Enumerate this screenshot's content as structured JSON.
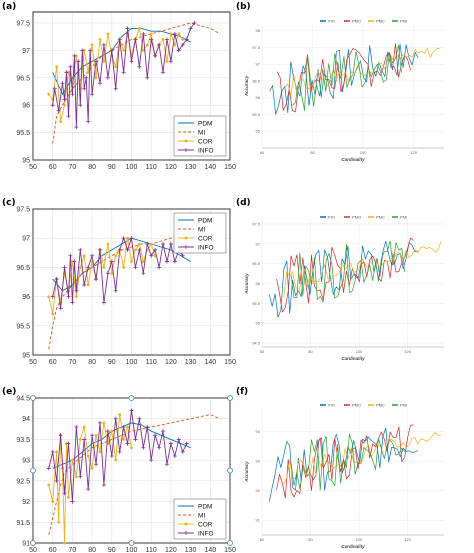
{
  "panel_labels": [
    "(a)",
    "(b)",
    "(c)",
    "(d)",
    "(e)",
    "(f)"
  ],
  "colors": {
    "PDM": "#0072BD",
    "MI": "#D95319",
    "COR": "#EDB120",
    "INFO": "#7E2F8E",
    "RED": "#d62728",
    "GRN": "#2ca02c"
  },
  "chart_data": [
    {
      "type": "line",
      "panel": "(a)",
      "side": "left",
      "xlim": [
        50,
        150
      ],
      "ylim": [
        95,
        97.7
      ],
      "xticks": [
        50,
        60,
        70,
        80,
        90,
        100,
        110,
        120,
        130,
        140,
        150
      ],
      "yticks": [
        95,
        95.5,
        96,
        96.5,
        97,
        97.5
      ],
      "legend_position": "bottom-right",
      "grid": true,
      "series": [
        {
          "name": "PDM",
          "style": "solid",
          "x": [
            60,
            65,
            70,
            75,
            80,
            85,
            90,
            95,
            100,
            105,
            110,
            115,
            120,
            125,
            130
          ],
          "y": [
            96.6,
            96.2,
            96.5,
            96.7,
            96.8,
            96.9,
            97.0,
            97.25,
            97.4,
            97.4,
            97.35,
            97.35,
            97.3,
            97.25,
            97.15
          ]
        },
        {
          "name": "MI",
          "style": "dashed",
          "x": [
            60,
            62,
            65,
            70,
            75,
            80,
            85,
            90,
            95,
            100,
            105,
            110,
            115,
            120,
            125,
            130,
            135,
            140,
            145
          ],
          "y": [
            95.3,
            95.8,
            96.0,
            96.3,
            96.5,
            96.7,
            96.9,
            97.0,
            97.1,
            97.2,
            97.25,
            97.3,
            97.35,
            97.4,
            97.45,
            97.5,
            97.45,
            97.4,
            97.3
          ]
        },
        {
          "name": "COR",
          "style": "marker",
          "x": [
            58,
            60,
            62,
            64,
            66,
            68,
            70,
            72,
            74,
            76,
            78,
            80,
            82,
            84,
            86,
            88,
            90,
            92,
            94,
            96,
            98,
            100,
            102,
            104,
            106,
            108,
            110,
            112,
            114,
            116,
            118,
            120,
            122,
            124,
            126
          ],
          "y": [
            96.2,
            96.1,
            96.7,
            95.7,
            96.0,
            96.6,
            96.4,
            96.9,
            96.3,
            97.0,
            96.6,
            97.1,
            96.5,
            97.2,
            96.8,
            97.3,
            96.9,
            96.7,
            97.2,
            97.0,
            97.3,
            96.9,
            97.2,
            97.4,
            97.0,
            97.1,
            97.3,
            96.9,
            97.1,
            97.2,
            96.8,
            97.3,
            97.1,
            97.3,
            97.2
          ]
        },
        {
          "name": "INFO",
          "style": "plus",
          "x": [
            60,
            61,
            63,
            65,
            66,
            67,
            68,
            69,
            70,
            71,
            72,
            73,
            74,
            75,
            76,
            77,
            78,
            79,
            80,
            82,
            84,
            86,
            88,
            90,
            92,
            94,
            96,
            98,
            100,
            102,
            104,
            106,
            108,
            110,
            112,
            114,
            116,
            118,
            120,
            122,
            124,
            126,
            128,
            130,
            132
          ],
          "y": [
            96.0,
            96.3,
            95.9,
            96.4,
            96.1,
            96.6,
            95.8,
            96.7,
            96.2,
            96.9,
            95.6,
            96.8,
            96.0,
            97.0,
            96.3,
            96.5,
            95.7,
            97.0,
            96.2,
            96.8,
            96.4,
            97.1,
            96.5,
            97.0,
            96.3,
            97.2,
            96.6,
            97.4,
            96.8,
            97.2,
            96.7,
            97.3,
            96.5,
            97.2,
            96.9,
            97.1,
            96.6,
            97.2,
            96.8,
            97.3,
            97.0,
            97.1,
            97.2,
            97.4,
            97.5
          ]
        }
      ],
      "legend": [
        "PDM",
        "MI",
        "COR",
        "INFO"
      ]
    },
    {
      "type": "line",
      "panel": "(b)",
      "side": "right",
      "xlim": [
        60,
        132
      ],
      "ylim": [
        94.5,
        98.2
      ],
      "xticks": [
        60,
        80,
        100,
        120
      ],
      "yticks": [
        95,
        95.5,
        96,
        96.5,
        97,
        97.5,
        98
      ],
      "ytick_labels": [
        "95",
        "95.5",
        "96",
        "96.5",
        "97",
        "97.5",
        "98"
      ],
      "xlabel": "Cardinality",
      "ylabel": "Accuracy",
      "legend_position": "top",
      "series": [
        {
          "name": "PIO",
          "color": "PDM"
        },
        {
          "name": "PMO",
          "color": "RED"
        },
        {
          "name": "PMC",
          "color": "COR"
        },
        {
          "name": "PMI",
          "color": "GRN"
        }
      ],
      "legend": [
        "PIO",
        "PMO",
        "PMC",
        "PMI"
      ]
    },
    {
      "type": "line",
      "panel": "(c)",
      "side": "left",
      "xlim": [
        50,
        150
      ],
      "ylim": [
        95,
        97.5
      ],
      "xticks": [
        50,
        60,
        70,
        80,
        90,
        100,
        110,
        120,
        130,
        140,
        150
      ],
      "yticks": [
        95,
        95.5,
        96,
        96.5,
        97,
        97.5
      ],
      "legend_position": "top-right",
      "grid": true,
      "series": [
        {
          "name": "PDM",
          "style": "solid",
          "x": [
            60,
            65,
            70,
            75,
            80,
            85,
            90,
            95,
            100,
            105,
            110,
            115,
            120,
            125,
            130
          ],
          "y": [
            96.3,
            96.1,
            96.2,
            96.4,
            96.5,
            96.7,
            96.8,
            96.9,
            97.0,
            96.95,
            96.9,
            96.85,
            96.8,
            96.7,
            96.6
          ]
        },
        {
          "name": "MI",
          "style": "dashed",
          "x": [
            58,
            60,
            62,
            65,
            70,
            75,
            80,
            85,
            90,
            95,
            100,
            105,
            110,
            115,
            120,
            125,
            130
          ],
          "y": [
            95.1,
            95.5,
            95.8,
            96.0,
            96.2,
            96.4,
            96.5,
            96.6,
            96.7,
            96.8,
            96.85,
            96.9,
            96.9,
            96.95,
            97.0,
            97.05,
            97.1
          ]
        },
        {
          "name": "COR",
          "style": "marker",
          "x": [
            58,
            60,
            62,
            64,
            66,
            68,
            70,
            72,
            74,
            76,
            78,
            80,
            82,
            84,
            86,
            88,
            90,
            92,
            94,
            96,
            98,
            100,
            102,
            104,
            106,
            108,
            110,
            112
          ],
          "y": [
            96.0,
            95.7,
            96.3,
            95.9,
            96.4,
            96.1,
            96.6,
            96.0,
            96.5,
            96.7,
            96.2,
            96.6,
            96.3,
            96.8,
            96.5,
            96.9,
            96.4,
            96.7,
            96.8,
            96.5,
            97.0,
            96.6,
            96.8,
            96.9,
            96.6,
            96.8,
            96.9,
            96.7
          ]
        },
        {
          "name": "INFO",
          "style": "plus",
          "x": [
            60,
            62,
            64,
            66,
            68,
            69,
            70,
            71,
            72,
            74,
            76,
            78,
            80,
            82,
            84,
            86,
            88,
            90,
            92,
            94,
            96,
            98,
            100,
            102,
            104,
            106,
            108,
            110,
            112,
            114,
            116,
            118,
            120,
            122,
            124,
            126
          ],
          "y": [
            96.0,
            96.3,
            95.8,
            96.5,
            96.0,
            96.7,
            95.9,
            96.6,
            96.1,
            96.8,
            96.2,
            96.5,
            96.7,
            96.3,
            96.8,
            95.9,
            96.4,
            96.6,
            96.1,
            96.8,
            97.0,
            96.8,
            97.0,
            96.5,
            96.8,
            96.4,
            96.9,
            96.7,
            96.8,
            96.5,
            96.9,
            96.6,
            96.9,
            96.6,
            96.8,
            96.7
          ]
        }
      ],
      "legend": [
        "PDM",
        "MI",
        "COR",
        "INFO"
      ]
    },
    {
      "type": "line",
      "panel": "(d)",
      "side": "right",
      "xlim": [
        60,
        135
      ],
      "ylim": [
        94.4,
        97.6
      ],
      "xticks": [
        60,
        80,
        100,
        120
      ],
      "yticks": [
        94.5,
        95,
        95.5,
        96,
        96.5,
        97,
        97.5
      ],
      "ytick_labels": [
        "94.5",
        "95",
        "95.5",
        "96",
        "96.5",
        "97",
        "97.5"
      ],
      "xlabel": "Cardinality",
      "ylabel": "Accuracy",
      "legend_position": "top",
      "series": [
        {
          "name": "PIO",
          "color": "PDM"
        },
        {
          "name": "PMO",
          "color": "RED"
        },
        {
          "name": "PMC",
          "color": "COR"
        },
        {
          "name": "PMI",
          "color": "GRN"
        }
      ],
      "legend": [
        "PIO",
        "PMO",
        "PMC",
        "PMI"
      ]
    },
    {
      "type": "line",
      "panel": "(e)",
      "side": "left",
      "xlim": [
        50,
        150
      ],
      "ylim": [
        91,
        94.5
      ],
      "xticks": [
        50,
        60,
        70,
        80,
        90,
        100,
        110,
        120,
        130,
        140,
        150
      ],
      "yticks": [
        91,
        91.5,
        92,
        92.5,
        93,
        93.5,
        94,
        94.5
      ],
      "legend_position": "bottom-right",
      "grid": true,
      "series": [
        {
          "name": "PDM",
          "style": "solid",
          "x": [
            60,
            65,
            70,
            75,
            80,
            85,
            90,
            95,
            100,
            105,
            110,
            115,
            120,
            125,
            130
          ],
          "y": [
            92.8,
            92.9,
            93.0,
            93.2,
            93.4,
            93.5,
            93.7,
            93.8,
            93.9,
            93.85,
            93.7,
            93.6,
            93.5,
            93.4,
            93.3
          ]
        },
        {
          "name": "MI",
          "style": "dashed",
          "x": [
            58,
            60,
            62,
            64,
            66,
            70,
            75,
            80,
            85,
            90,
            95,
            100,
            105,
            110,
            115,
            120,
            125,
            130,
            135,
            140,
            145
          ],
          "y": [
            91.2,
            91.6,
            92.0,
            92.4,
            92.7,
            92.9,
            93.1,
            93.3,
            93.4,
            93.5,
            93.6,
            93.7,
            93.75,
            93.8,
            93.85,
            93.9,
            93.95,
            94.0,
            94.05,
            94.1,
            94.0
          ]
        },
        {
          "name": "COR",
          "style": "marker",
          "x": [
            58,
            60,
            62,
            63,
            64,
            65,
            66,
            67,
            68,
            70,
            72,
            74,
            76,
            78,
            80,
            82,
            84,
            86,
            88,
            90,
            92,
            94,
            96,
            98,
            100
          ],
          "y": [
            92.4,
            92.0,
            93.2,
            91.5,
            93.6,
            92.8,
            91.0,
            93.4,
            92.1,
            93.0,
            92.6,
            93.5,
            93.8,
            93.1,
            92.8,
            93.6,
            93.2,
            93.9,
            93.4,
            93.7,
            93.0,
            94.1,
            93.5,
            93.8,
            93.3
          ]
        },
        {
          "name": "INFO",
          "style": "plus",
          "x": [
            58,
            60,
            62,
            64,
            66,
            68,
            70,
            72,
            74,
            76,
            78,
            80,
            82,
            84,
            86,
            88,
            90,
            92,
            94,
            96,
            98,
            100,
            102,
            104,
            106,
            108,
            110,
            112,
            114,
            116,
            118,
            120,
            122,
            124,
            126,
            128
          ],
          "y": [
            92.8,
            93.2,
            92.5,
            93.6,
            92.2,
            93.4,
            92.0,
            93.8,
            92.6,
            93.5,
            92.3,
            93.6,
            92.9,
            93.9,
            92.4,
            93.7,
            93.1,
            94.0,
            93.2,
            93.8,
            93.4,
            94.2,
            93.5,
            94.0,
            93.3,
            93.8,
            93.0,
            93.6,
            93.3,
            93.7,
            92.9,
            93.4,
            93.1,
            93.5,
            93.2,
            93.4
          ]
        }
      ],
      "legend": [
        "PDM",
        "MI",
        "COR",
        "INFO"
      ]
    },
    {
      "type": "line",
      "panel": "(f)",
      "side": "right",
      "xlim": [
        60,
        135
      ],
      "ylim": [
        90.5,
        94.8
      ],
      "xticks": [
        60,
        80,
        100,
        120
      ],
      "yticks": [
        91,
        92,
        93,
        94
      ],
      "ytick_labels": [
        "91",
        "92",
        "93",
        "94"
      ],
      "xlabel": "Cardinality",
      "ylabel": "Accuracy",
      "legend_position": "top",
      "series": [
        {
          "name": "PIO",
          "color": "PDM"
        },
        {
          "name": "PMO",
          "color": "RED"
        },
        {
          "name": "PMC",
          "color": "COR"
        },
        {
          "name": "PMI",
          "color": "GRN"
        }
      ],
      "legend": [
        "PIO",
        "PMO",
        "PMC",
        "PMI"
      ]
    }
  ]
}
